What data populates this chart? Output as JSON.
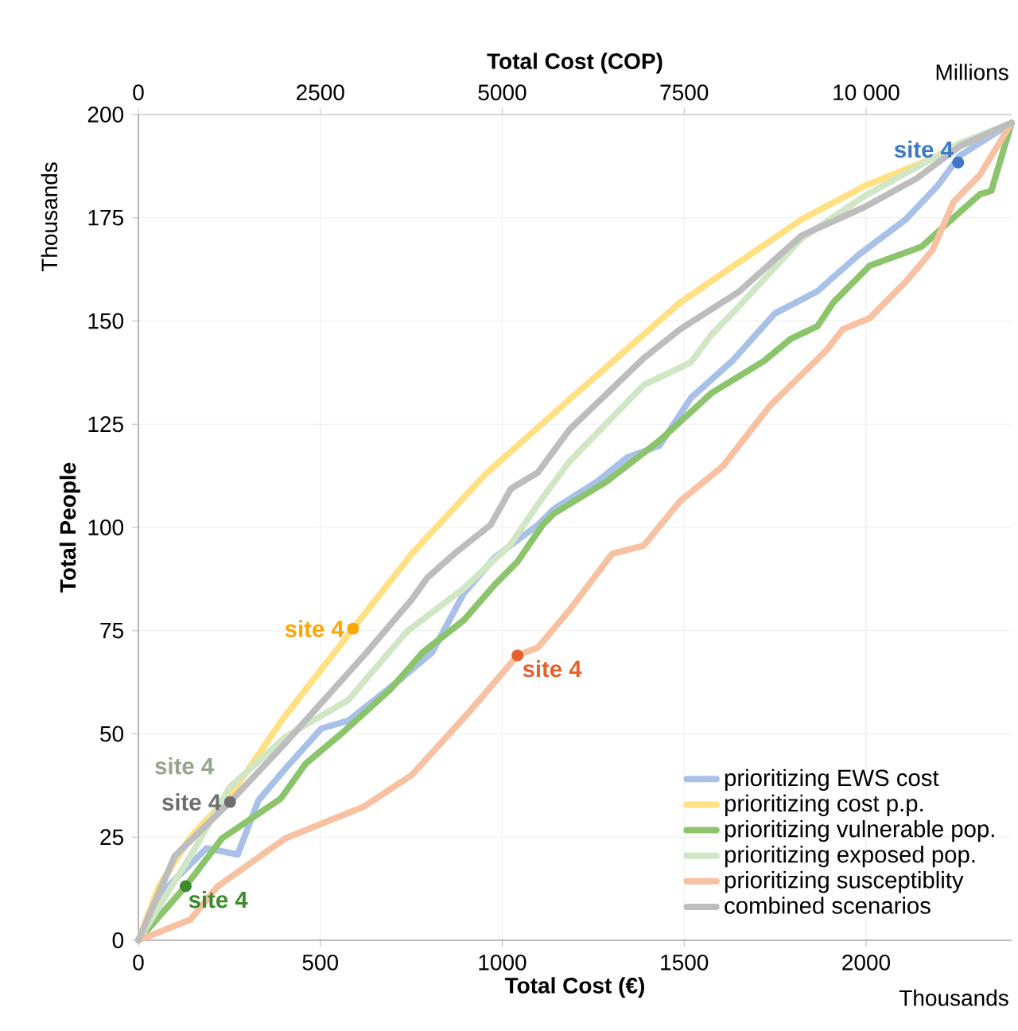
{
  "chart_data": {
    "type": "line",
    "xlabel": "Total Cost (€)",
    "x2label": "Total Cost (COP)",
    "ylabel": "Total People",
    "xlim": [
      0,
      2400
    ],
    "xticks": [
      0,
      500,
      1000,
      1500,
      2000
    ],
    "x2lim": [
      0,
      12000
    ],
    "x2ticks": [
      0,
      2500,
      5000,
      7500,
      {
        "value": 10000,
        "label": "10 000"
      }
    ],
    "ylim": [
      0,
      200
    ],
    "yticks": [
      0,
      25,
      50,
      75,
      100,
      125,
      150,
      175,
      200
    ],
    "grid": true,
    "legend": "bottom right",
    "line_style": "solid",
    "series": [
      {
        "name": "prioritizing EWS cost",
        "color": "#a9c1e8",
        "x": [
          0,
          56,
          187,
          273,
          330,
          404,
          503,
          577,
          720,
          807,
          894,
          981,
          1098,
          1141,
          1259,
          1345,
          1432,
          1519,
          1632,
          1749,
          1866,
          1979,
          2109,
          2196,
          2257,
          2400
        ],
        "values": [
          0,
          10.8,
          22.3,
          20.8,
          33.9,
          41.6,
          51.3,
          53.2,
          63.2,
          69.7,
          84,
          92.9,
          100.6,
          104.4,
          111,
          117,
          119.8,
          131.4,
          140.3,
          151.8,
          157.2,
          166,
          174.6,
          182.7,
          190,
          198
        ]
      },
      {
        "name": "prioritizing cost p.p.",
        "color": "#ffe083",
        "x": [
          0,
          56,
          143,
          260,
          400,
          590,
          751,
          955,
          1185,
          1489,
          1823,
          1996,
          2200,
          2400
        ],
        "values": [
          0,
          13,
          25,
          36,
          54,
          75.5,
          93.6,
          113,
          131,
          154.5,
          174.6,
          182.7,
          190,
          198
        ]
      },
      {
        "name": "prioritizing vulnerable pop.",
        "color": "#8cc46c",
        "x": [
          0,
          130,
          230,
          391,
          460,
          564,
          694,
          781,
          894,
          981,
          1042,
          1111,
          1141,
          1285,
          1432,
          1576,
          1719,
          1793,
          1866,
          1910,
          2010,
          2153,
          2240,
          2313,
          2344,
          2400
        ],
        "values": [
          0,
          13.1,
          24.7,
          34.3,
          42.8,
          50.5,
          60.9,
          69.7,
          77.5,
          86.3,
          91.7,
          100.6,
          103.3,
          111,
          121,
          132.6,
          140.3,
          145.7,
          148.7,
          154.5,
          163.4,
          168,
          175,
          180.7,
          181.5,
          198
        ]
      },
      {
        "name": "prioritizing exposed pop.",
        "color": "#d0e6c4",
        "x": [
          0,
          156,
          250,
          404,
          577,
          738,
          894,
          1024,
          1098,
          1185,
          1389,
          1519,
          1576,
          1649,
          1823,
          1996,
          2257,
          2400
        ],
        "values": [
          0,
          22.3,
          37,
          49.3,
          58.2,
          74.8,
          85.2,
          96,
          105.6,
          116,
          134.5,
          140,
          146.8,
          153.4,
          170,
          180.3,
          193,
          198
        ]
      },
      {
        "name": "prioritizing susceptiblity",
        "color": "#f7c1a2",
        "x": [
          0,
          143,
          217,
          404,
          564,
          620,
          751,
          911,
          1042,
          1098,
          1185,
          1302,
          1389,
          1489,
          1606,
          1736,
          1892,
          1936,
          2010,
          2109,
          2183,
          2240,
          2313,
          2400
        ],
        "values": [
          0,
          5,
          13,
          24.7,
          30.4,
          32.4,
          40,
          55.5,
          69,
          70.9,
          80,
          93.6,
          95.6,
          106.4,
          114.8,
          129.5,
          143,
          148,
          150.7,
          159.5,
          167.2,
          178.8,
          185.4,
          198
        ]
      },
      {
        "name": "combined scenarios",
        "color": "#bdbdbd",
        "x": [
          0,
          100,
          252,
          404,
          620,
          751,
          794,
          868,
          968,
          1024,
          1098,
          1185,
          1389,
          1489,
          1649,
          1823,
          1996,
          2140,
          2257,
          2400
        ],
        "values": [
          0,
          20.4,
          33.5,
          47.8,
          69,
          82.5,
          87.8,
          93.6,
          100.6,
          109.4,
          113.3,
          123.7,
          141,
          148,
          157,
          170.7,
          177.6,
          184.6,
          192.3,
          198
        ]
      },
      {
        "type": "scatter",
        "marker": "circle",
        "color": "#3d78c8",
        "x": [
          2253
        ],
        "values": [
          188.4
        ]
      },
      {
        "type": "scatter",
        "marker": "circle",
        "color": "#ffa500",
        "x": [
          590
        ],
        "values": [
          75.5
        ]
      },
      {
        "type": "scatter",
        "marker": "circle",
        "color": "#e8612c",
        "x": [
          1042
        ],
        "values": [
          69
        ]
      },
      {
        "type": "scatter",
        "marker": "circle",
        "color": "#6e6e6e",
        "x": [
          252
        ],
        "values": [
          33.5
        ]
      },
      {
        "type": "scatter",
        "marker": "circle",
        "color": "#3d8b2c",
        "x": [
          130
        ],
        "values": [
          13.1
        ]
      }
    ],
    "annotations": [
      "Thousands",
      "Thousands",
      "Millions",
      {
        "text": "site 4",
        "x": 2253,
        "y": 188.4
      },
      {
        "text": "site 4",
        "x": 590,
        "y": 75.5
      },
      {
        "text": "site 4",
        "x": 1042,
        "y": 69
      },
      {
        "text": "site 4",
        "x": 250,
        "y": 37
      },
      {
        "text": "site 4",
        "x": 252,
        "y": 33.5
      },
      {
        "text": "site 4",
        "x": 130,
        "y": 13.1
      }
    ]
  }
}
